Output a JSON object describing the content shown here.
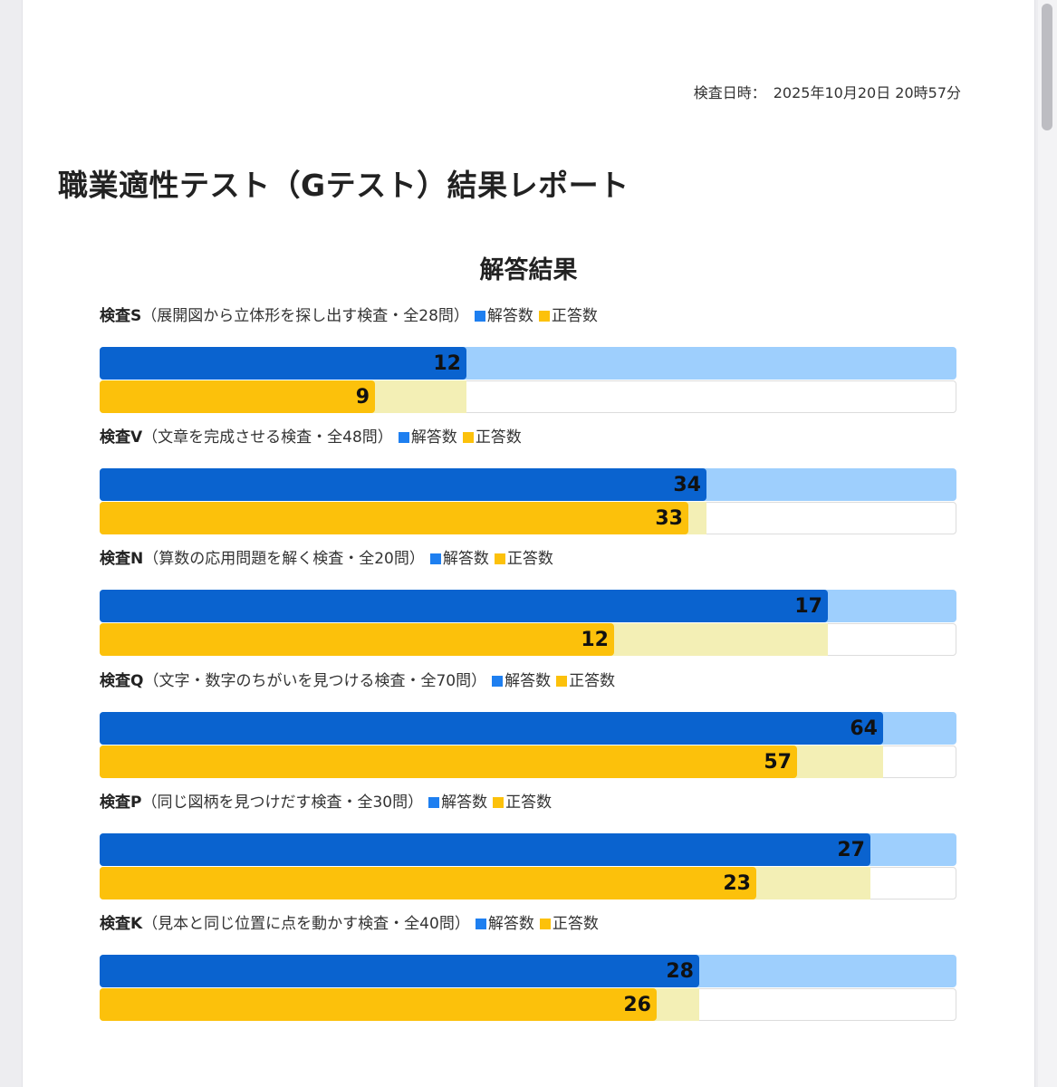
{
  "header": {
    "date_label": "検査日時：",
    "date_value": "2025年10月20日 20時57分"
  },
  "report_title": "職業適性テスト（Gテスト）結果レポート",
  "section_title": "解答結果",
  "colors": {
    "answered": "#0a63cf",
    "answered_track": "#9ecffd",
    "correct": "#fcc10b",
    "correct_track": "#f3efb5",
    "legend_answered": "#1e7ff0",
    "legend_correct": "#fcc10b"
  },
  "chart_data": {
    "type": "bar",
    "orientation": "horizontal",
    "legend": [
      "解答数",
      "正答数"
    ],
    "tests": [
      {
        "code": "検査S",
        "desc": "（展開図から立体形を探し出す検査・全28問）",
        "total": 28,
        "answered": 12,
        "correct": 9
      },
      {
        "code": "検査V",
        "desc": "（文章を完成させる検査・全48問）",
        "total": 48,
        "answered": 34,
        "correct": 33
      },
      {
        "code": "検査N",
        "desc": "（算数の応用問題を解く検査・全20問）",
        "total": 20,
        "answered": 17,
        "correct": 12
      },
      {
        "code": "検査Q",
        "desc": "（文字・数字のちがいを見つける検査・全70問）",
        "total": 70,
        "answered": 64,
        "correct": 57
      },
      {
        "code": "検査P",
        "desc": "（同じ図柄を見つけだす検査・全30問）",
        "total": 30,
        "answered": 27,
        "correct": 23
      },
      {
        "code": "検査K",
        "desc": "（見本と同じ位置に点を動かす検査・全40問）",
        "total": 40,
        "answered": 28,
        "correct": 26
      }
    ]
  }
}
